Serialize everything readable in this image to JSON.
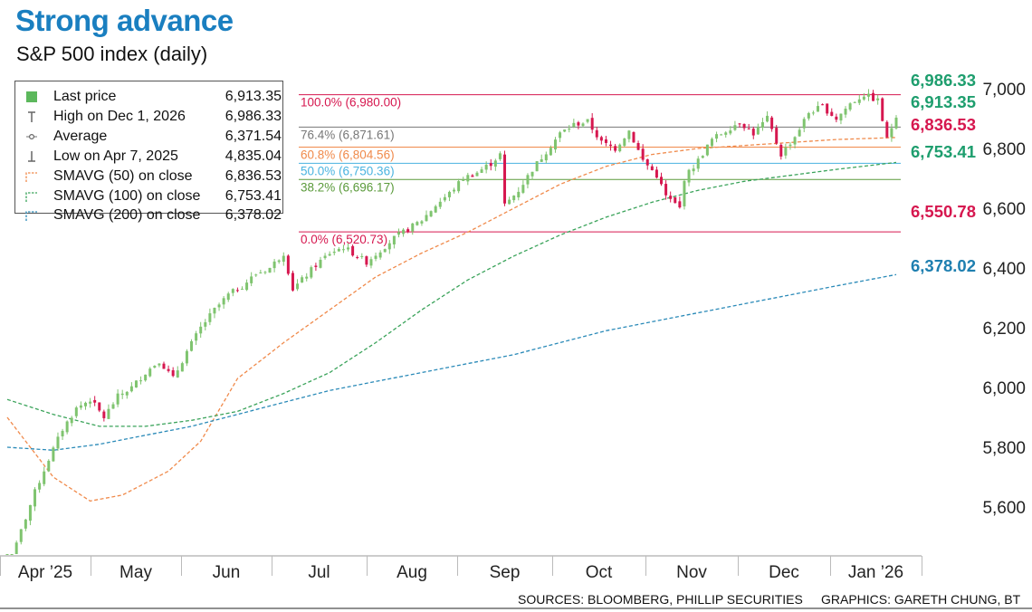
{
  "header": {
    "title": "Strong advance",
    "subtitle": "S&P 500 index (daily)"
  },
  "footer": {
    "sources": "SOURCES: BLOOMBERG, PHILLIP SECURITIES",
    "graphics": "GRAPHICS: GARETH CHUNG, BT"
  },
  "legend": {
    "items": [
      {
        "label": "Last price",
        "value": "6,913.35",
        "icon": "green-square-icon",
        "color": "#5cb85c"
      },
      {
        "label": "High on Dec 1, 2026",
        "value": "6,986.33",
        "icon": "high-marker-icon",
        "color": "#666666"
      },
      {
        "label": "Average",
        "value": "6,371.54",
        "icon": "average-marker-icon",
        "color": "#666666"
      },
      {
        "label": "Low on Apr 7, 2025",
        "value": "4,835.04",
        "icon": "low-marker-icon",
        "color": "#666666"
      },
      {
        "label": "SMAVG (50) on close",
        "value": "6,836.53",
        "icon": "dashed-box-icon",
        "color": "#f08a4b"
      },
      {
        "label": "SMAVG (100) on close",
        "value": "6,753.41",
        "icon": "dashed-box-icon",
        "color": "#3aa35a"
      },
      {
        "label": "SMAVG (200) on close",
        "value": "6,378.02",
        "icon": "dashed-box-icon",
        "color": "#2a8ab8"
      }
    ]
  },
  "colors": {
    "title": "#1a7fc0",
    "up_candle": "#7fc46f",
    "down_candle": "#d6174f",
    "sma50": "#f08a4b",
    "sma100": "#3aa35a",
    "sma200": "#2a8ab8",
    "fib_100": "#d6174f",
    "fib_76": "#777777",
    "fib_61": "#f08a4b",
    "fib_50": "#4ab3e0",
    "fib_38": "#5a9a3a",
    "fib_0": "#d6174f",
    "label_green": "#1e9e6e",
    "label_red": "#d6174f",
    "label_blue": "#1e7fb0"
  },
  "chart_data": {
    "type": "candlestick",
    "ylim": [
      5450,
      7050
    ],
    "yticks": [
      5600,
      5800,
      6000,
      6200,
      6400,
      6600,
      6800,
      7000
    ],
    "ytick_labels": [
      "5,600",
      "5,800",
      "6,000",
      "6,200",
      "6,400",
      "6,600",
      "6,800",
      "7,000"
    ],
    "x_months": [
      "Apr ’25",
      "May",
      "Jun",
      "Jul",
      "Aug",
      "Sep",
      "Oct",
      "Nov",
      "Dec",
      "Jan ’26"
    ],
    "fibonacci": [
      {
        "label": "100.0% (6,980.00)",
        "value": 6980.0,
        "color": "#d6174f"
      },
      {
        "label": "76.4% (6,871.61)",
        "value": 6871.61,
        "color": "#777777"
      },
      {
        "label": "60.8% (6,804.56)",
        "value": 6804.56,
        "color": "#f08a4b"
      },
      {
        "label": "50.0% (6,750.36)",
        "value": 6750.36,
        "color": "#4ab3e0"
      },
      {
        "label": "38.2% (6,696.17)",
        "value": 6696.17,
        "color": "#5a9a3a"
      },
      {
        "label": "0.0% (6,520.73)",
        "value": 6520.73,
        "color": "#d6174f"
      }
    ],
    "right_labels": [
      {
        "text": "6,986.33",
        "value": 6986.33,
        "color": "#1e9e6e"
      },
      {
        "text": "6,913.35",
        "value": 6913.35,
        "color": "#1e9e6e"
      },
      {
        "text": "6,836.53",
        "value": 6836.53,
        "color": "#d6174f"
      },
      {
        "text": "6,753.41",
        "value": 6753.41,
        "color": "#1e9e6e"
      },
      {
        "text": "6,550.78",
        "value": 6550.78,
        "color": "#d6174f"
      },
      {
        "text": "6,378.02",
        "value": 6378.02,
        "color": "#1e7fb0"
      }
    ],
    "ohlc_anchor_closes": [
      [
        0,
        5380
      ],
      [
        3,
        5520
      ],
      [
        6,
        5650
      ],
      [
        9,
        5760
      ],
      [
        12,
        5860
      ],
      [
        15,
        5930
      ],
      [
        18,
        5960
      ],
      [
        21,
        5900
      ],
      [
        24,
        5970
      ],
      [
        27,
        6000
      ],
      [
        30,
        6050
      ],
      [
        33,
        6090
      ],
      [
        36,
        6030
      ],
      [
        39,
        6120
      ],
      [
        42,
        6200
      ],
      [
        45,
        6260
      ],
      [
        48,
        6310
      ],
      [
        51,
        6340
      ],
      [
        54,
        6380
      ],
      [
        57,
        6400
      ],
      [
        60,
        6450
      ],
      [
        62,
        6330
      ],
      [
        64,
        6360
      ],
      [
        67,
        6410
      ],
      [
        70,
        6450
      ],
      [
        73,
        6470
      ],
      [
        76,
        6440
      ],
      [
        78,
        6420
      ],
      [
        81,
        6460
      ],
      [
        84,
        6500
      ],
      [
        87,
        6530
      ],
      [
        90,
        6560
      ],
      [
        93,
        6610
      ],
      [
        96,
        6650
      ],
      [
        99,
        6700
      ],
      [
        102,
        6720
      ],
      [
        105,
        6750
      ],
      [
        107,
        6780
      ],
      [
        108,
        6610
      ],
      [
        111,
        6660
      ],
      [
        114,
        6730
      ],
      [
        117,
        6790
      ],
      [
        120,
        6850
      ],
      [
        123,
        6880
      ],
      [
        126,
        6890
      ],
      [
        129,
        6820
      ],
      [
        132,
        6800
      ],
      [
        135,
        6860
      ],
      [
        138,
        6760
      ],
      [
        141,
        6710
      ],
      [
        143,
        6640
      ],
      [
        146,
        6600
      ],
      [
        147,
        6700
      ],
      [
        150,
        6760
      ],
      [
        153,
        6830
      ],
      [
        156,
        6860
      ],
      [
        159,
        6890
      ],
      [
        162,
        6850
      ],
      [
        165,
        6900
      ],
      [
        168,
        6780
      ],
      [
        171,
        6840
      ],
      [
        174,
        6920
      ],
      [
        177,
        6940
      ],
      [
        180,
        6900
      ],
      [
        183,
        6950
      ],
      [
        186,
        6980
      ],
      [
        189,
        6960
      ],
      [
        191,
        6830
      ],
      [
        193,
        6913
      ]
    ],
    "sma50": [
      [
        0,
        5900
      ],
      [
        10,
        5700
      ],
      [
        18,
        5620
      ],
      [
        25,
        5640
      ],
      [
        35,
        5720
      ],
      [
        42,
        5820
      ],
      [
        50,
        6030
      ],
      [
        60,
        6150
      ],
      [
        70,
        6260
      ],
      [
        80,
        6370
      ],
      [
        90,
        6450
      ],
      [
        100,
        6520
      ],
      [
        110,
        6600
      ],
      [
        120,
        6680
      ],
      [
        130,
        6740
      ],
      [
        140,
        6780
      ],
      [
        150,
        6800
      ],
      [
        160,
        6810
      ],
      [
        170,
        6820
      ],
      [
        180,
        6830
      ],
      [
        193,
        6836.53
      ]
    ],
    "sma100": [
      [
        0,
        5960
      ],
      [
        10,
        5910
      ],
      [
        20,
        5870
      ],
      [
        30,
        5870
      ],
      [
        40,
        5890
      ],
      [
        50,
        5920
      ],
      [
        60,
        5980
      ],
      [
        70,
        6050
      ],
      [
        80,
        6150
      ],
      [
        90,
        6260
      ],
      [
        100,
        6360
      ],
      [
        110,
        6440
      ],
      [
        120,
        6510
      ],
      [
        130,
        6570
      ],
      [
        140,
        6620
      ],
      [
        150,
        6660
      ],
      [
        160,
        6690
      ],
      [
        170,
        6710
      ],
      [
        180,
        6730
      ],
      [
        193,
        6753.41
      ]
    ],
    "sma200": [
      [
        0,
        5800
      ],
      [
        10,
        5790
      ],
      [
        20,
        5810
      ],
      [
        30,
        5840
      ],
      [
        40,
        5870
      ],
      [
        50,
        5910
      ],
      [
        60,
        5950
      ],
      [
        70,
        5990
      ],
      [
        80,
        6020
      ],
      [
        90,
        6050
      ],
      [
        100,
        6080
      ],
      [
        110,
        6110
      ],
      [
        120,
        6150
      ],
      [
        130,
        6190
      ],
      [
        140,
        6220
      ],
      [
        150,
        6250
      ],
      [
        160,
        6280
      ],
      [
        170,
        6310
      ],
      [
        180,
        6340
      ],
      [
        193,
        6378.02
      ]
    ]
  }
}
